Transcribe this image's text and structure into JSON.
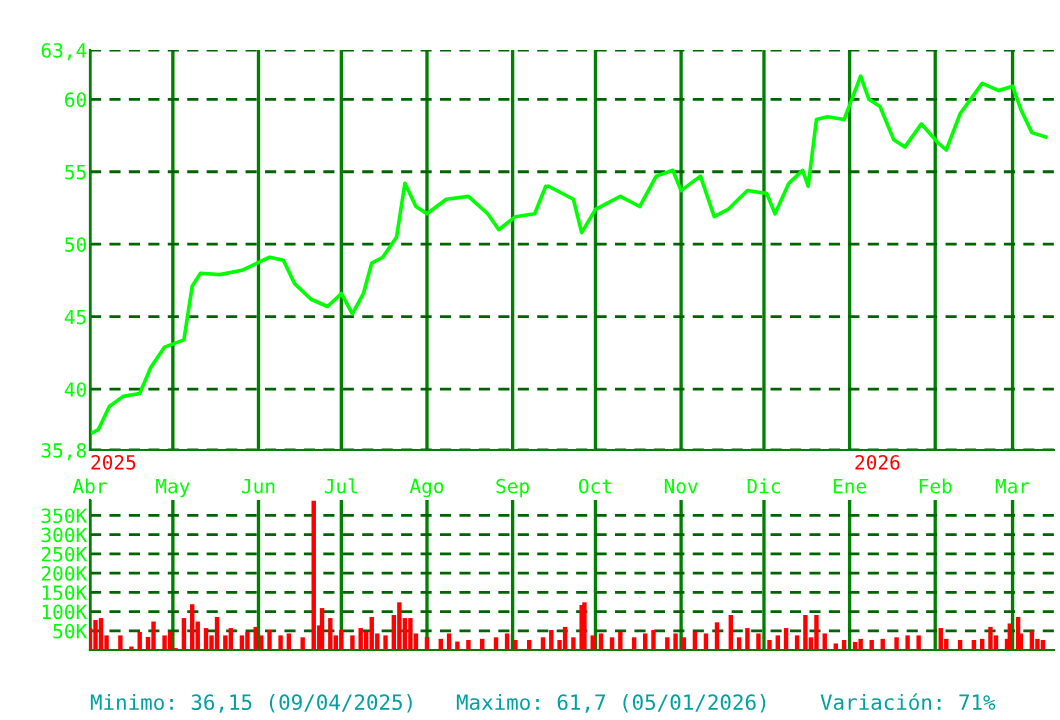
{
  "chart_data": [
    {
      "type": "line",
      "ylim": [
        35.8,
        63.4
      ],
      "yticks": [
        {
          "value": 63.4,
          "label": "63,4"
        },
        60,
        55,
        50,
        45,
        40,
        {
          "value": 35.8,
          "label": "35,8"
        }
      ],
      "xlim": [
        "2025-04-01",
        "2026-03-16"
      ],
      "xticks": [
        {
          "value": "2025-04-01",
          "label": null
        },
        {
          "value": "2025-05-01",
          "label": null
        },
        {
          "value": "2025-06-01",
          "label": null
        },
        {
          "value": "2025-07-01",
          "label": null
        },
        {
          "value": "2025-08-01",
          "label": null
        },
        {
          "value": "2025-09-01",
          "label": null
        },
        {
          "value": "2025-10-01",
          "label": null
        },
        {
          "value": "2025-11-01",
          "label": null
        },
        {
          "value": "2025-12-01",
          "label": null
        },
        {
          "value": "2026-01-01",
          "label": null
        },
        {
          "value": "2026-02-01",
          "label": null
        },
        {
          "value": "2026-03-01",
          "label": null
        }
      ],
      "grid": true,
      "tick_labels": "y",
      "marker": "none",
      "line_style": "solid",
      "x": [
        "2025-04-02",
        "2025-04-04",
        "2025-04-08",
        "2025-04-13",
        "2025-04-19",
        "2025-04-23",
        "2025-04-28",
        "2025-05-05",
        "2025-05-08",
        "2025-05-11",
        "2025-05-18",
        "2025-05-26",
        "2025-06-05",
        "2025-06-10",
        "2025-06-14",
        "2025-06-20",
        "2025-06-26",
        "2025-07-01",
        "2025-07-05",
        "2025-07-09",
        "2025-07-12",
        "2025-07-16",
        "2025-07-21",
        "2025-07-24",
        "2025-07-28",
        "2025-08-01",
        "2025-08-08",
        "2025-08-16",
        "2025-08-23",
        "2025-08-27",
        "2025-09-02",
        "2025-09-09",
        "2025-09-13",
        "2025-09-14",
        "2025-09-23",
        "2025-09-26",
        "2025-10-01",
        "2025-10-10",
        "2025-10-17",
        "2025-10-23",
        "2025-10-29",
        "2025-11-01",
        "2025-11-08",
        "2025-11-13",
        "2025-11-18",
        "2025-11-25",
        "2025-12-02",
        "2025-12-05",
        "2025-12-10",
        "2025-12-15",
        "2025-12-17",
        "2025-12-20",
        "2025-12-24",
        "2025-12-30",
        "2026-01-05",
        "2026-01-08",
        "2026-01-12",
        "2026-01-17",
        "2026-01-21",
        "2026-01-27",
        "2026-02-02",
        "2026-02-05",
        "2026-02-10",
        "2026-02-18",
        "2026-02-24",
        "2026-03-01",
        "2026-03-04",
        "2026-03-08",
        "2026-03-13"
      ],
      "series": [
        {
          "color": "#00ff00",
          "values": [
            37.0,
            37.2,
            38.8,
            39.5,
            39.7,
            41.5,
            42.9,
            43.4,
            47.1,
            48.0,
            47.9,
            48.2,
            49.1,
            48.9,
            47.3,
            46.2,
            45.7,
            46.6,
            45.2,
            46.6,
            48.7,
            49.1,
            50.5,
            54.2,
            52.6,
            52.1,
            53.1,
            53.3,
            52.1,
            51.0,
            51.9,
            52.1,
            54.0,
            54.0,
            53.1,
            50.8,
            52.4,
            53.3,
            52.6,
            54.7,
            55.1,
            53.7,
            54.7,
            51.9,
            52.4,
            53.7,
            53.5,
            52.1,
            54.2,
            55.1,
            54.0,
            58.6,
            58.8,
            58.6,
            61.6,
            60.0,
            59.5,
            57.2,
            56.7,
            58.3,
            57.0,
            56.5,
            59.0,
            61.1,
            60.6,
            60.9,
            59.3,
            57.7,
            57.4
          ]
        }
      ],
      "annotations": [
        "2025",
        "2026",
        "Minimo: 36,15 (09/04/2025)",
        "Maximo: 61,7 (05/01/2026)",
        "Variación: 71%"
      ]
    },
    {
      "type": "bar",
      "ylim": [
        0,
        390000
      ],
      "yticks": [
        {
          "value": 50000,
          "label": "50K"
        },
        {
          "value": 100000,
          "label": "100K"
        },
        {
          "value": 150000,
          "label": "150K"
        },
        {
          "value": 200000,
          "label": "200K"
        },
        {
          "value": 250000,
          "label": "250K"
        },
        {
          "value": 300000,
          "label": "300K"
        },
        {
          "value": 350000,
          "label": "350K"
        }
      ],
      "xlim": [
        "2025-04-01",
        "2026-03-16"
      ],
      "xticks": [
        {
          "value": "2025-04-01",
          "label": "Abr"
        },
        {
          "value": "2025-05-01",
          "label": "May"
        },
        {
          "value": "2025-06-01",
          "label": "Jun"
        },
        {
          "value": "2025-07-01",
          "label": "Jul"
        },
        {
          "value": "2025-08-01",
          "label": "Ago"
        },
        {
          "value": "2025-09-01",
          "label": "Sep"
        },
        {
          "value": "2025-10-01",
          "label": "Oct"
        },
        {
          "value": "2025-11-01",
          "label": "Nov"
        },
        {
          "value": "2025-12-01",
          "label": "Dic"
        },
        {
          "value": "2026-01-01",
          "label": "Ene"
        },
        {
          "value": "2026-02-01",
          "label": "Feb"
        },
        {
          "value": "2026-03-01",
          "label": "Mar"
        }
      ],
      "grid": true,
      "x": [
        "2025-04-01",
        "2025-04-03",
        "2025-04-05",
        "2025-04-07",
        "2025-04-12",
        "2025-04-16",
        "2025-04-19",
        "2025-04-22",
        "2025-04-24",
        "2025-04-28",
        "2025-04-30",
        "2025-05-02",
        "2025-05-05",
        "2025-05-08",
        "2025-05-10",
        "2025-05-13",
        "2025-05-15",
        "2025-05-17",
        "2025-05-20",
        "2025-05-22",
        "2025-05-26",
        "2025-05-28",
        "2025-05-31",
        "2025-06-02",
        "2025-06-05",
        "2025-06-09",
        "2025-06-12",
        "2025-06-17",
        "2025-06-21",
        "2025-06-23",
        "2025-06-24",
        "2025-06-27",
        "2025-06-29",
        "2025-07-01",
        "2025-07-05",
        "2025-07-08",
        "2025-07-10",
        "2025-07-12",
        "2025-07-14",
        "2025-07-17",
        "2025-07-20",
        "2025-07-22",
        "2025-07-24",
        "2025-07-26",
        "2025-07-28",
        "2025-08-01",
        "2025-08-06",
        "2025-08-09",
        "2025-08-12",
        "2025-08-16",
        "2025-08-21",
        "2025-08-26",
        "2025-08-30",
        "2025-09-02",
        "2025-09-07",
        "2025-09-12",
        "2025-09-15",
        "2025-09-18",
        "2025-09-20",
        "2025-09-23",
        "2025-09-26",
        "2025-09-27",
        "2025-09-30",
        "2025-10-03",
        "2025-10-07",
        "2025-10-10",
        "2025-10-15",
        "2025-10-19",
        "2025-10-22",
        "2025-10-27",
        "2025-10-30",
        "2025-11-02",
        "2025-11-06",
        "2025-11-10",
        "2025-11-14",
        "2025-11-19",
        "2025-11-22",
        "2025-11-25",
        "2025-11-29",
        "2025-12-03",
        "2025-12-06",
        "2025-12-09",
        "2025-12-13",
        "2025-12-16",
        "2025-12-18",
        "2025-12-20",
        "2025-12-23",
        "2025-12-27",
        "2025-12-30",
        "2026-01-03",
        "2026-01-05",
        "2026-01-09",
        "2026-01-13",
        "2026-01-18",
        "2026-01-22",
        "2026-01-26",
        "2026-02-03",
        "2026-02-05",
        "2026-02-10",
        "2026-02-15",
        "2026-02-18",
        "2026-02-21",
        "2026-02-23",
        "2026-02-27",
        "2026-02-28",
        "2026-03-03",
        "2026-03-04",
        "2026-03-08",
        "2026-03-10",
        "2026-03-12"
      ],
      "series": [
        {
          "color": "#ff0000",
          "values": [
            57000,
            78000,
            83000,
            38000,
            38000,
            9000,
            47000,
            34000,
            74000,
            38000,
            47000,
            5000,
            83000,
            119000,
            74000,
            57000,
            38000,
            86000,
            38000,
            57000,
            38000,
            47000,
            60000,
            38000,
            52000,
            38000,
            43000,
            33000,
            388000,
            64000,
            109000,
            83000,
            38000,
            52000,
            38000,
            57000,
            47000,
            86000,
            43000,
            38000,
            91000,
            124000,
            83000,
            83000,
            43000,
            34000,
            29000,
            43000,
            22000,
            26000,
            29000,
            33000,
            43000,
            26000,
            26000,
            33000,
            52000,
            26000,
            60000,
            33000,
            117000,
            124000,
            38000,
            43000,
            33000,
            47000,
            33000,
            43000,
            52000,
            33000,
            43000,
            33000,
            47000,
            43000,
            72000,
            91000,
            33000,
            57000,
            43000,
            26000,
            38000,
            57000,
            38000,
            91000,
            33000,
            91000,
            43000,
            17000,
            26000,
            21000,
            29000,
            26000,
            29000,
            33000,
            38000,
            38000,
            57000,
            29000,
            26000,
            26000,
            29000,
            60000,
            38000,
            29000,
            69000,
            86000,
            43000,
            50000,
            29000,
            26000
          ]
        }
      ]
    }
  ]
}
